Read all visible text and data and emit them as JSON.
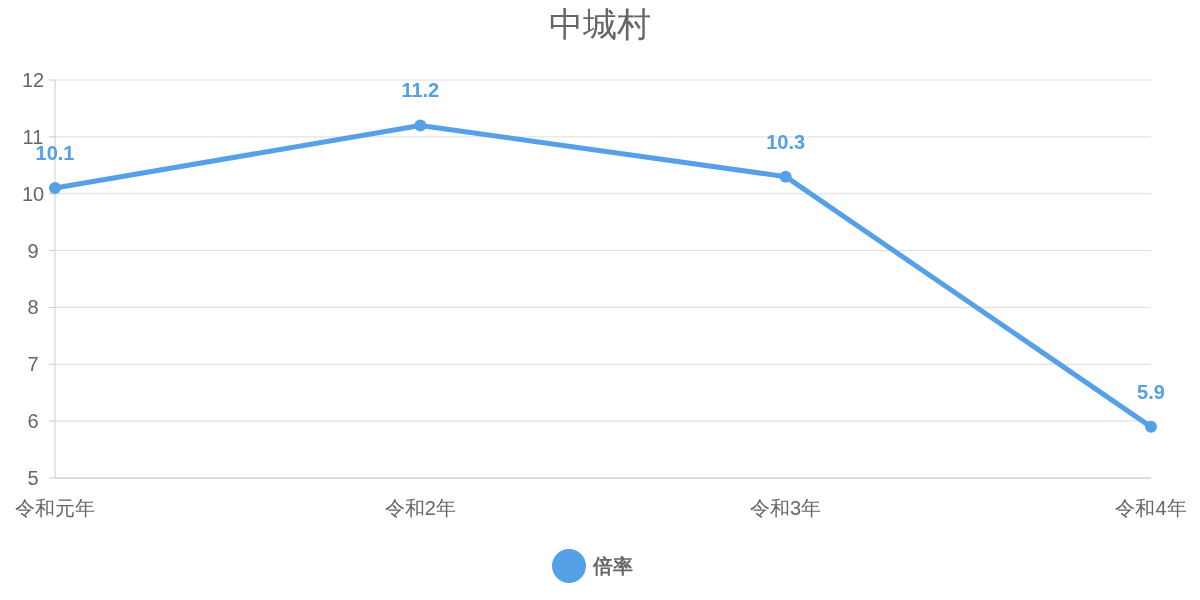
{
  "chart_data": {
    "type": "line",
    "title": "中城村",
    "categories": [
      "令和元年",
      "令和2年",
      "令和3年",
      "令和4年"
    ],
    "series": [
      {
        "name": "倍率",
        "color": "#55a0e6",
        "values": [
          10.1,
          11.2,
          10.3,
          5.9
        ]
      }
    ],
    "ylim": [
      5,
      12
    ],
    "yticks": [
      5,
      6,
      7,
      8,
      9,
      10,
      11,
      12
    ],
    "grid": "y",
    "legend": "bottom",
    "marker": "circle",
    "line_style": "solid",
    "data_labels": true
  }
}
